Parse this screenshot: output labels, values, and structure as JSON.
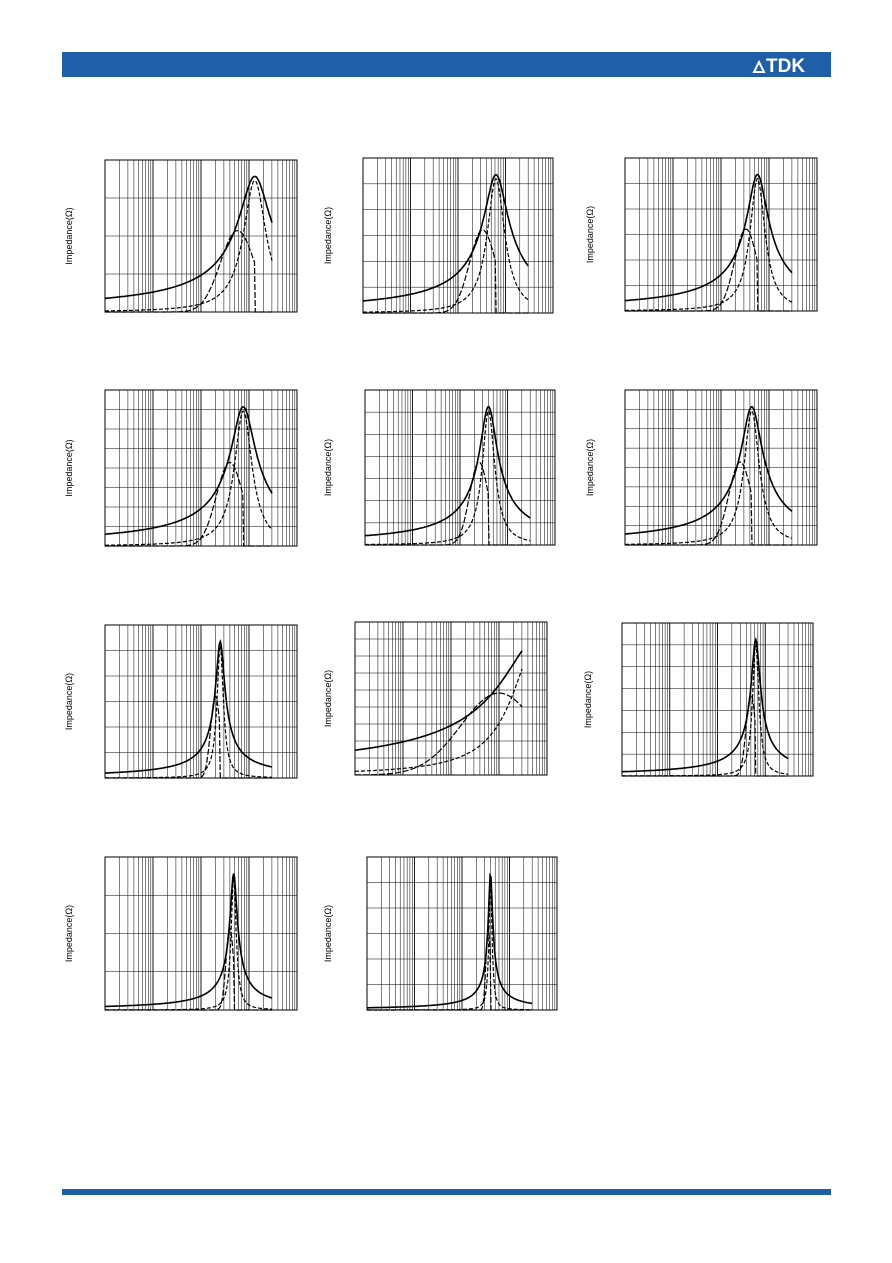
{
  "header": {
    "logo": "TDK"
  },
  "charts": [
    {
      "y_label": "Impedance(Ω)"
    },
    {
      "y_label": "Impedance(Ω)"
    },
    {
      "y_label": "Impedance(Ω)"
    },
    {
      "y_label": "Impedance(Ω)"
    },
    {
      "y_label": "Impedance(Ω)"
    },
    {
      "y_label": "Impedance(Ω)"
    },
    {
      "y_label": "Impedance(Ω)"
    },
    {
      "y_label": "Impedance(Ω)"
    },
    {
      "y_label": "Impedance(Ω)"
    },
    {
      "y_label": "Impedance(Ω)"
    },
    {
      "y_label": "Impedance(Ω)"
    }
  ]
}
